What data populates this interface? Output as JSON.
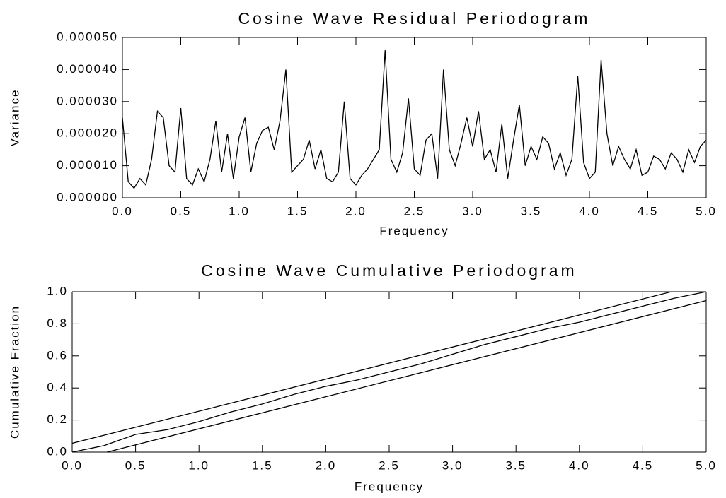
{
  "chart_data": [
    {
      "type": "line",
      "title": "Cosine Wave Residual Periodogram",
      "x_label": "Frequency",
      "y_label": "Variance",
      "color": "#000000",
      "x": [
        0.0,
        0.05,
        0.1,
        0.15,
        0.2,
        0.25,
        0.3,
        0.35,
        0.4,
        0.45,
        0.5,
        0.55,
        0.6,
        0.65,
        0.7,
        0.75,
        0.8,
        0.85,
        0.9,
        0.95,
        1.0,
        1.05,
        1.1,
        1.15,
        1.2,
        1.25,
        1.3,
        1.35,
        1.4,
        1.45,
        1.5,
        1.55,
        1.6,
        1.65,
        1.7,
        1.75,
        1.8,
        1.85,
        1.9,
        1.95,
        2.0,
        2.05,
        2.1,
        2.15,
        2.2,
        2.25,
        2.3,
        2.35,
        2.4,
        2.45,
        2.5,
        2.55,
        2.6,
        2.65,
        2.7,
        2.75,
        2.8,
        2.85,
        2.9,
        2.95,
        3.0,
        3.05,
        3.1,
        3.15,
        3.2,
        3.25,
        3.3,
        3.35,
        3.4,
        3.45,
        3.5,
        3.55,
        3.6,
        3.65,
        3.7,
        3.75,
        3.8,
        3.85,
        3.9,
        3.95,
        4.0,
        4.05,
        4.1,
        4.15,
        4.2,
        4.25,
        4.3,
        4.35,
        4.4,
        4.45,
        4.5,
        4.55,
        4.6,
        4.65,
        4.7,
        4.75,
        4.8,
        4.85,
        4.9,
        4.95,
        5.0
      ],
      "values": [
        2.5e-05,
        5e-06,
        3e-06,
        6e-06,
        4e-06,
        1.2e-05,
        2.7e-05,
        2.5e-05,
        1e-05,
        8e-06,
        2.8e-05,
        6e-06,
        4e-06,
        9e-06,
        5e-06,
        1.2e-05,
        2.4e-05,
        8e-06,
        2e-05,
        6e-06,
        1.9e-05,
        2.5e-05,
        8e-06,
        1.7e-05,
        2.1e-05,
        2.2e-05,
        1.5e-05,
        2.4e-05,
        4e-05,
        8e-06,
        1e-05,
        1.2e-05,
        1.8e-05,
        9e-06,
        1.5e-05,
        6e-06,
        5e-06,
        8e-06,
        3e-05,
        6e-06,
        4e-06,
        7e-06,
        9e-06,
        1.2e-05,
        1.5e-05,
        4.6e-05,
        1.2e-05,
        8e-06,
        1.4e-05,
        3.1e-05,
        9e-06,
        7e-06,
        1.8e-05,
        2e-05,
        6e-06,
        4e-05,
        1.5e-05,
        1e-05,
        1.7e-05,
        2.5e-05,
        1.6e-05,
        2.7e-05,
        1.2e-05,
        1.5e-05,
        8e-06,
        2.3e-05,
        6e-06,
        1.8e-05,
        2.9e-05,
        1e-05,
        1.6e-05,
        1.2e-05,
        1.9e-05,
        1.7e-05,
        9e-06,
        1.4e-05,
        7e-06,
        1.2e-05,
        3.8e-05,
        1.1e-05,
        6e-06,
        8e-06,
        4.3e-05,
        2e-05,
        1e-05,
        1.6e-05,
        1.2e-05,
        9e-06,
        1.5e-05,
        7e-06,
        8e-06,
        1.3e-05,
        1.2e-05,
        9e-06,
        1.4e-05,
        1.2e-05,
        8e-06,
        1.5e-05,
        1.1e-05,
        1.6e-05,
        1.8e-05
      ],
      "xlim": [
        0,
        5
      ],
      "ylim": [
        0,
        5e-05
      ],
      "xticks": [
        {
          "value": 0,
          "label": "0.0"
        },
        0.5,
        {
          "value": 1,
          "label": "1.0"
        },
        1.5,
        {
          "value": 2,
          "label": "2.0"
        },
        2.5,
        {
          "value": 3,
          "label": "3.0"
        },
        3.5,
        {
          "value": 4,
          "label": "4.0"
        },
        4.5,
        {
          "value": 5,
          "label": "5.0"
        }
      ],
      "yticks": [
        {
          "value": 0,
          "label": "0.000000"
        },
        {
          "value": 1e-05,
          "label": "0.000010"
        },
        {
          "value": 2e-05,
          "label": "0.000020"
        },
        {
          "value": 3e-05,
          "label": "0.000030"
        },
        {
          "value": 4e-05,
          "label": "0.000040"
        },
        {
          "value": 5e-05,
          "label": "0.000050"
        }
      ]
    },
    {
      "type": "line",
      "title": "Cosine Wave Cumulative Periodogram",
      "x_label": "Frequency",
      "y_label": "Cumulative Fraction",
      "series": [
        {
          "color": "#000000",
          "x": [
            0,
            0.25,
            0.5,
            0.75,
            1,
            1.25,
            1.5,
            1.75,
            2,
            2.25,
            2.5,
            2.75,
            3,
            3.25,
            3.5,
            3.75,
            4,
            4.25,
            4.5,
            4.75,
            5
          ],
          "values": [
            0,
            0.04,
            0.11,
            0.14,
            0.19,
            0.25,
            0.3,
            0.36,
            0.41,
            0.45,
            0.5,
            0.55,
            0.61,
            0.67,
            0.72,
            0.77,
            0.81,
            0.86,
            0.91,
            0.96,
            1
          ]
        },
        {
          "color": "#000000",
          "x": [
            0,
            4.725
          ],
          "values": [
            0.055,
            1
          ]
        },
        {
          "color": "#000000",
          "x": [
            0.275,
            5
          ],
          "values": [
            0,
            0.945
          ]
        }
      ],
      "xlim": [
        0,
        5
      ],
      "ylim": [
        0,
        1
      ],
      "xticks": [
        {
          "value": 0,
          "label": "0.0"
        },
        0.5,
        {
          "value": 1,
          "label": "1.0"
        },
        1.5,
        {
          "value": 2,
          "label": "2.0"
        },
        2.5,
        {
          "value": 3,
          "label": "3.0"
        },
        3.5,
        {
          "value": 4,
          "label": "4.0"
        },
        4.5,
        {
          "value": 5,
          "label": "5.0"
        }
      ],
      "yticks": [
        {
          "value": 0,
          "label": "0.0"
        },
        0.2,
        0.4,
        0.6,
        0.8,
        {
          "value": 1,
          "label": "1.0"
        }
      ]
    }
  ]
}
